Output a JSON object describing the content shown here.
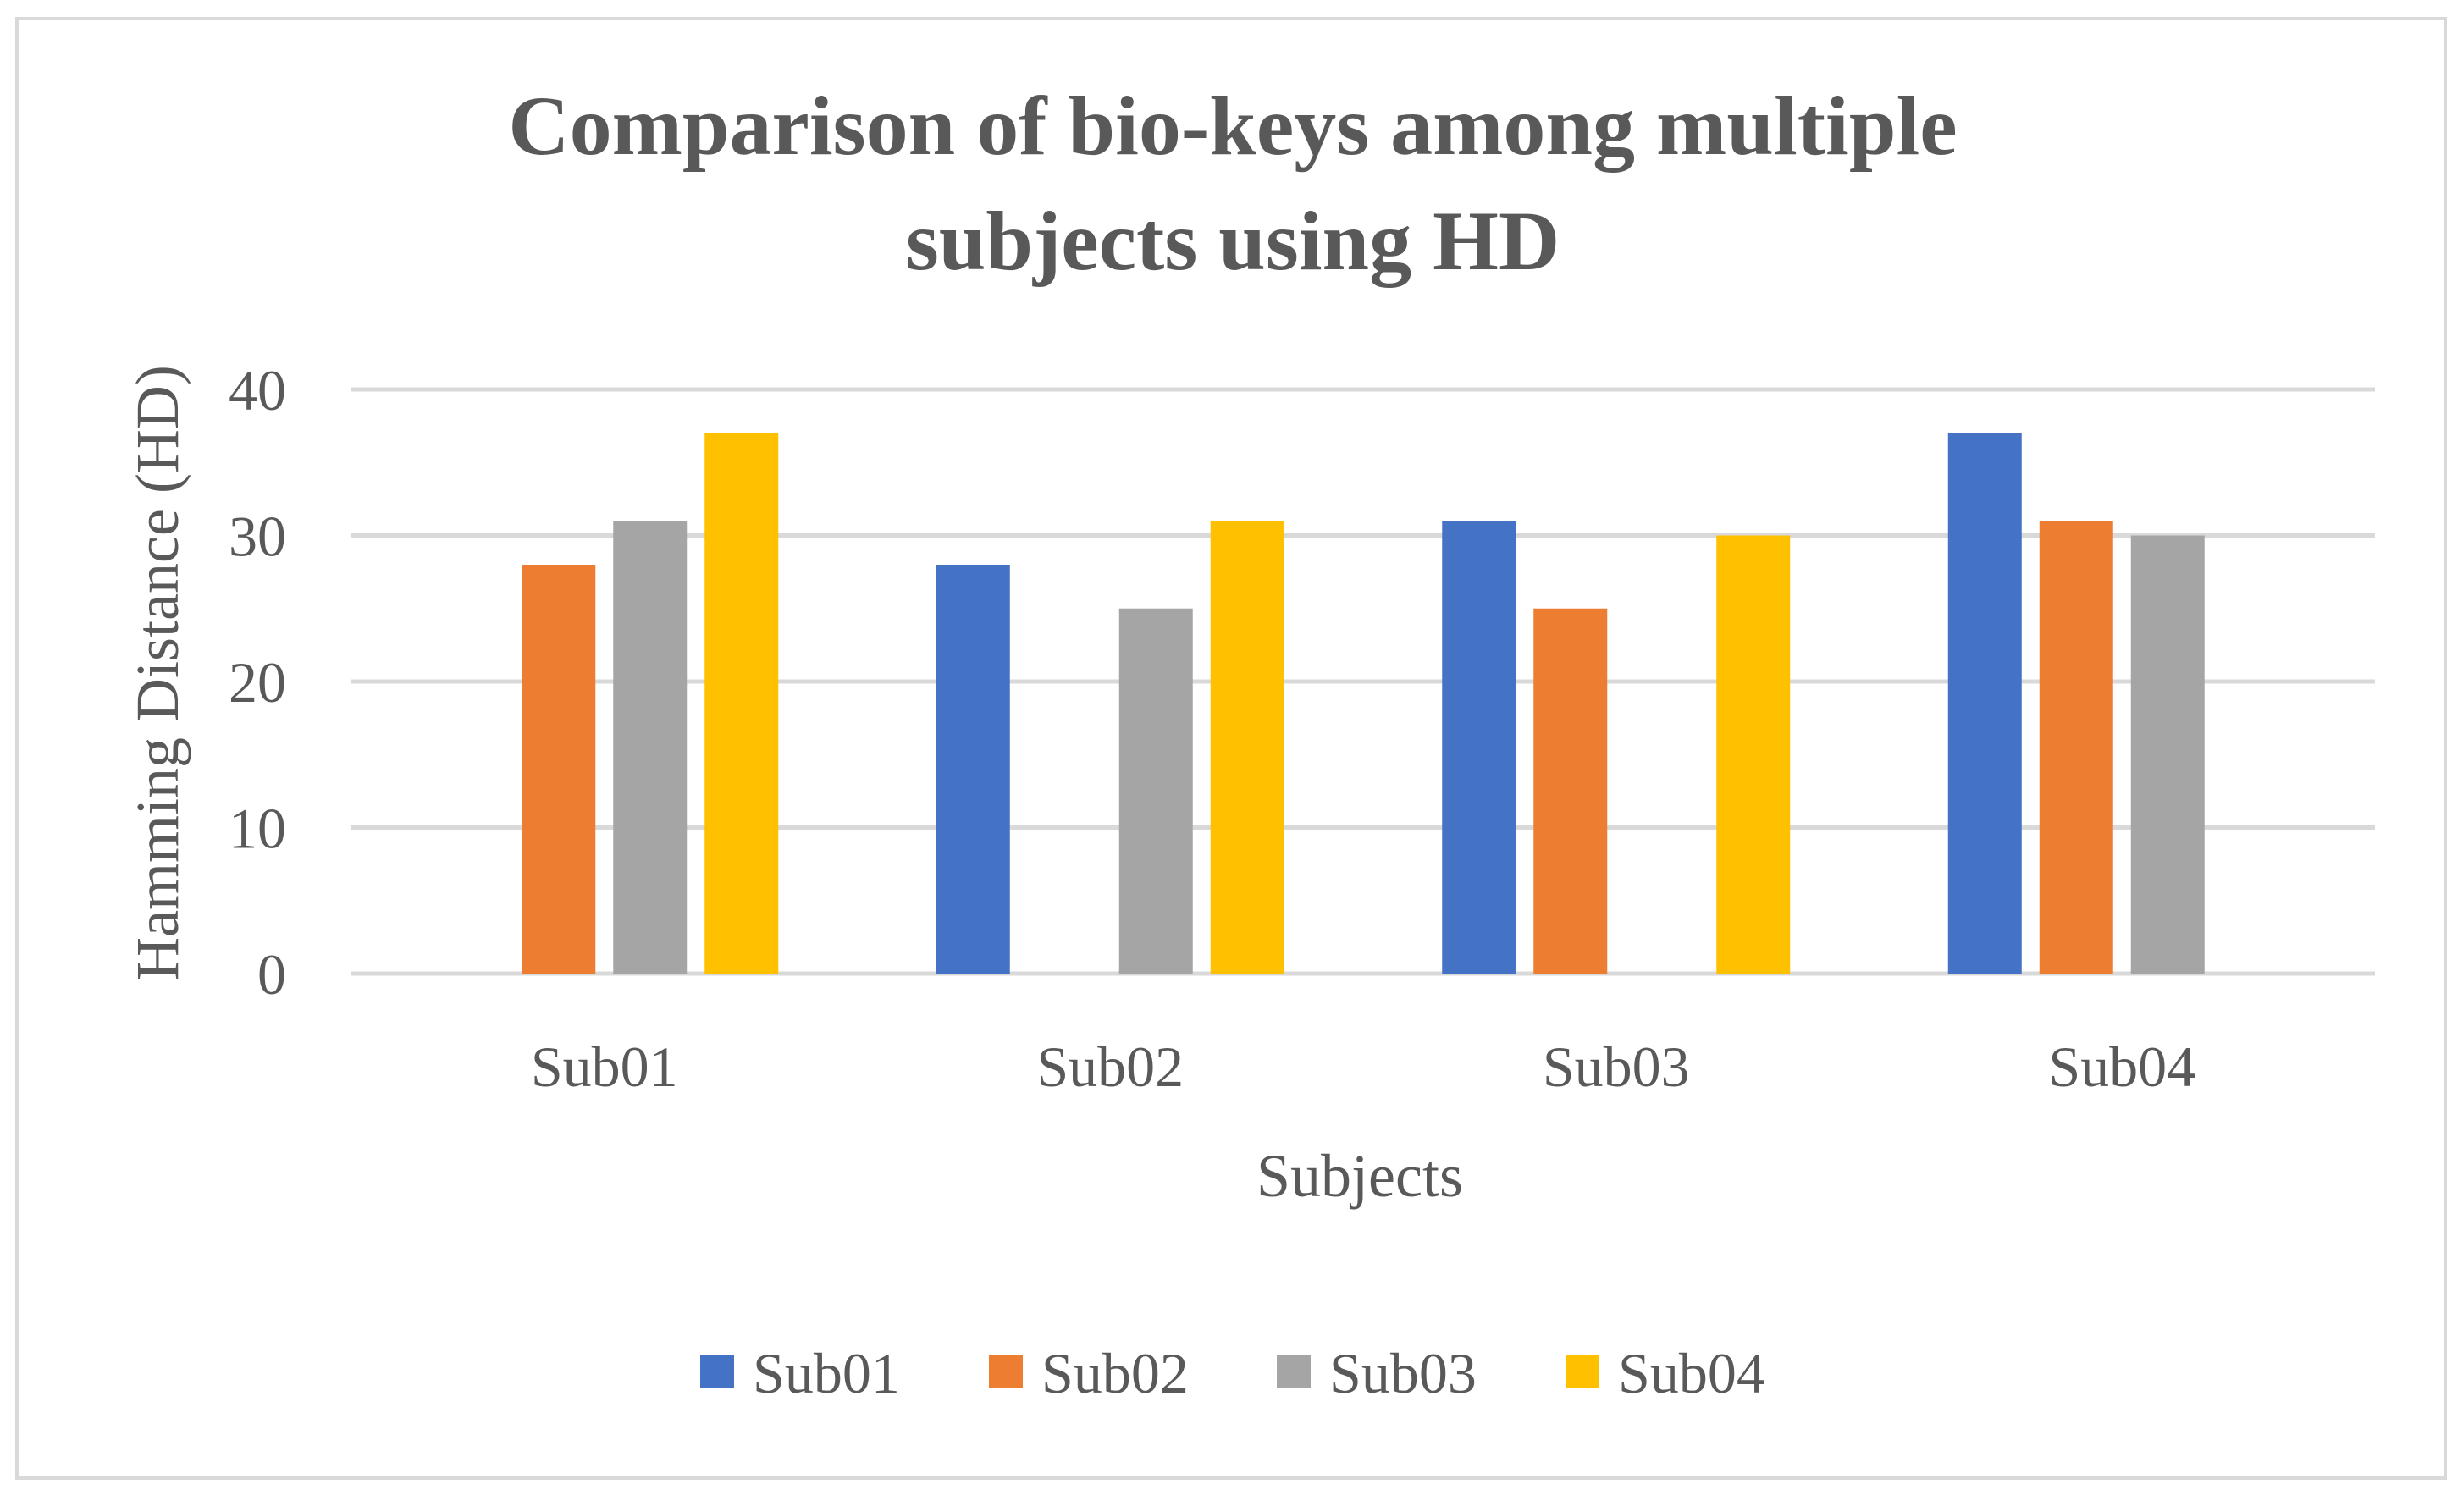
{
  "chart_data": {
    "type": "bar",
    "title_lines": [
      "Comparison of bio-keys among multiple",
      "subjects using HD"
    ],
    "xlabel": "Subjects",
    "ylabel": "Hamming Distance (HD)",
    "categories": [
      "Sub01",
      "Sub02",
      "Sub03",
      "Sub04"
    ],
    "ylim": [
      0,
      40
    ],
    "yticks": [
      0,
      10,
      20,
      30,
      40
    ],
    "ytick_labels": [
      "0",
      "10",
      "20",
      "30",
      "40"
    ],
    "grid": true,
    "legend_position": "bottom",
    "series": [
      {
        "name": "Sub01",
        "color": "#4472C4",
        "values": [
          0,
          28,
          31,
          37
        ]
      },
      {
        "name": "Sub02",
        "color": "#ED7D31",
        "values": [
          28,
          0,
          25,
          31
        ]
      },
      {
        "name": "Sub03",
        "color": "#A5A5A5",
        "values": [
          31,
          25,
          0,
          30
        ]
      },
      {
        "name": "Sub04",
        "color": "#FFC000",
        "values": [
          37,
          31,
          30,
          0
        ]
      }
    ]
  },
  "colors": {
    "text": "#595959",
    "grid": "#D9D9D9",
    "border": "#D9D9D9"
  }
}
